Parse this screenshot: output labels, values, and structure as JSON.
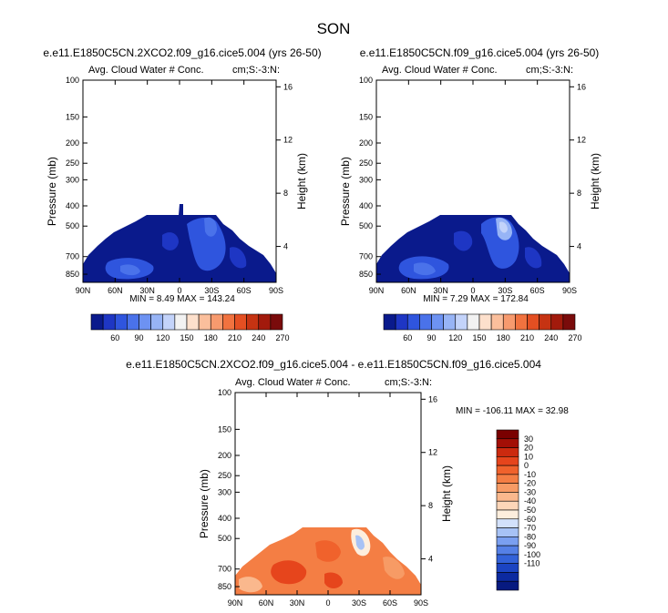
{
  "page_title": "SON",
  "chart_data": [
    {
      "type": "heatmap",
      "title": "e.e11.E1850C5CN.2XCO2.f09_g16.cice5.004 (yrs 26-50)",
      "subtitle_left": "Avg. Cloud Water # Conc.",
      "subtitle_right": "cm;S:-3:N:",
      "ylabel": "Pressure (mb)",
      "ylabel_right": "Height (km)",
      "x_ticks": [
        "90N",
        "60N",
        "30N",
        "0",
        "30S",
        "60S",
        "90S"
      ],
      "y_ticks": [
        "100",
        "150",
        "200",
        "250",
        "300",
        "400",
        "500",
        "700",
        "850"
      ],
      "y_ticks_right": [
        "16",
        "12",
        "8",
        "4"
      ],
      "stats": "MIN =  8.49   MAX = 143.24",
      "colorbar_labels": [
        "60",
        "90",
        "120",
        "150",
        "180",
        "210",
        "240",
        "270"
      ]
    },
    {
      "type": "heatmap",
      "title": "e.e11.E1850C5CN.f09_g16.cice5.004 (yrs 26-50)",
      "subtitle_left": "Avg. Cloud Water # Conc.",
      "subtitle_right": "cm;S:-3:N:",
      "ylabel": "Pressure (mb)",
      "ylabel_right": "Height (km)",
      "x_ticks": [
        "90N",
        "60N",
        "30N",
        "0",
        "30S",
        "60S",
        "90S"
      ],
      "y_ticks": [
        "100",
        "150",
        "200",
        "250",
        "300",
        "400",
        "500",
        "700",
        "850"
      ],
      "y_ticks_right": [
        "16",
        "12",
        "8",
        "4"
      ],
      "stats": "MIN =  7.29   MAX = 172.84",
      "colorbar_labels": [
        "60",
        "90",
        "120",
        "150",
        "180",
        "210",
        "240",
        "270"
      ]
    },
    {
      "type": "heatmap",
      "title": "e.e11.E1850C5CN.2XCO2.f09_g16.cice5.004 - e.e11.E1850C5CN.f09_g16.cice5.004",
      "subtitle_left": "Avg. Cloud Water # Conc.",
      "subtitle_right": "cm;S:-3:N:",
      "ylabel": "Pressure (mb)",
      "ylabel_right": "Height (km)",
      "x_ticks": [
        "90N",
        "60N",
        "30N",
        "0",
        "30S",
        "60S",
        "90S"
      ],
      "y_ticks": [
        "100",
        "150",
        "200",
        "250",
        "300",
        "400",
        "500",
        "700",
        "850"
      ],
      "y_ticks_right": [
        "16",
        "12",
        "8",
        "4"
      ],
      "stats": "MIN = -106.11   MAX =  32.98",
      "colorbar_labels": [
        "30",
        "20",
        "10",
        "0",
        "-10",
        "-20",
        "-30",
        "-40",
        "-50",
        "-60",
        "-70",
        "-80",
        "-90",
        "-100",
        "-110"
      ]
    }
  ],
  "colors": {
    "abs_scale": [
      "#0a1a8c",
      "#1e36c4",
      "#2f55de",
      "#4a72ea",
      "#6d92f2",
      "#97b4f6",
      "#c3d3fa",
      "#f2f2f2",
      "#fde0cc",
      "#fbbf9c",
      "#f79a6e",
      "#f1723f",
      "#e44f22",
      "#c63312",
      "#a21a0c",
      "#7a0b0b"
    ],
    "diff_scale": [
      "#7a0000",
      "#a30f06",
      "#cc2a0f",
      "#e6451c",
      "#f0622c",
      "#f47e44",
      "#f79b65",
      "#fab88d",
      "#fdd6b8",
      "#fdeedd",
      "#d3e1fb",
      "#a7c2f5",
      "#7a9ff0",
      "#5580e6",
      "#3362d9",
      "#1b44c2",
      "#0c2aa0",
      "#071a80"
    ]
  }
}
